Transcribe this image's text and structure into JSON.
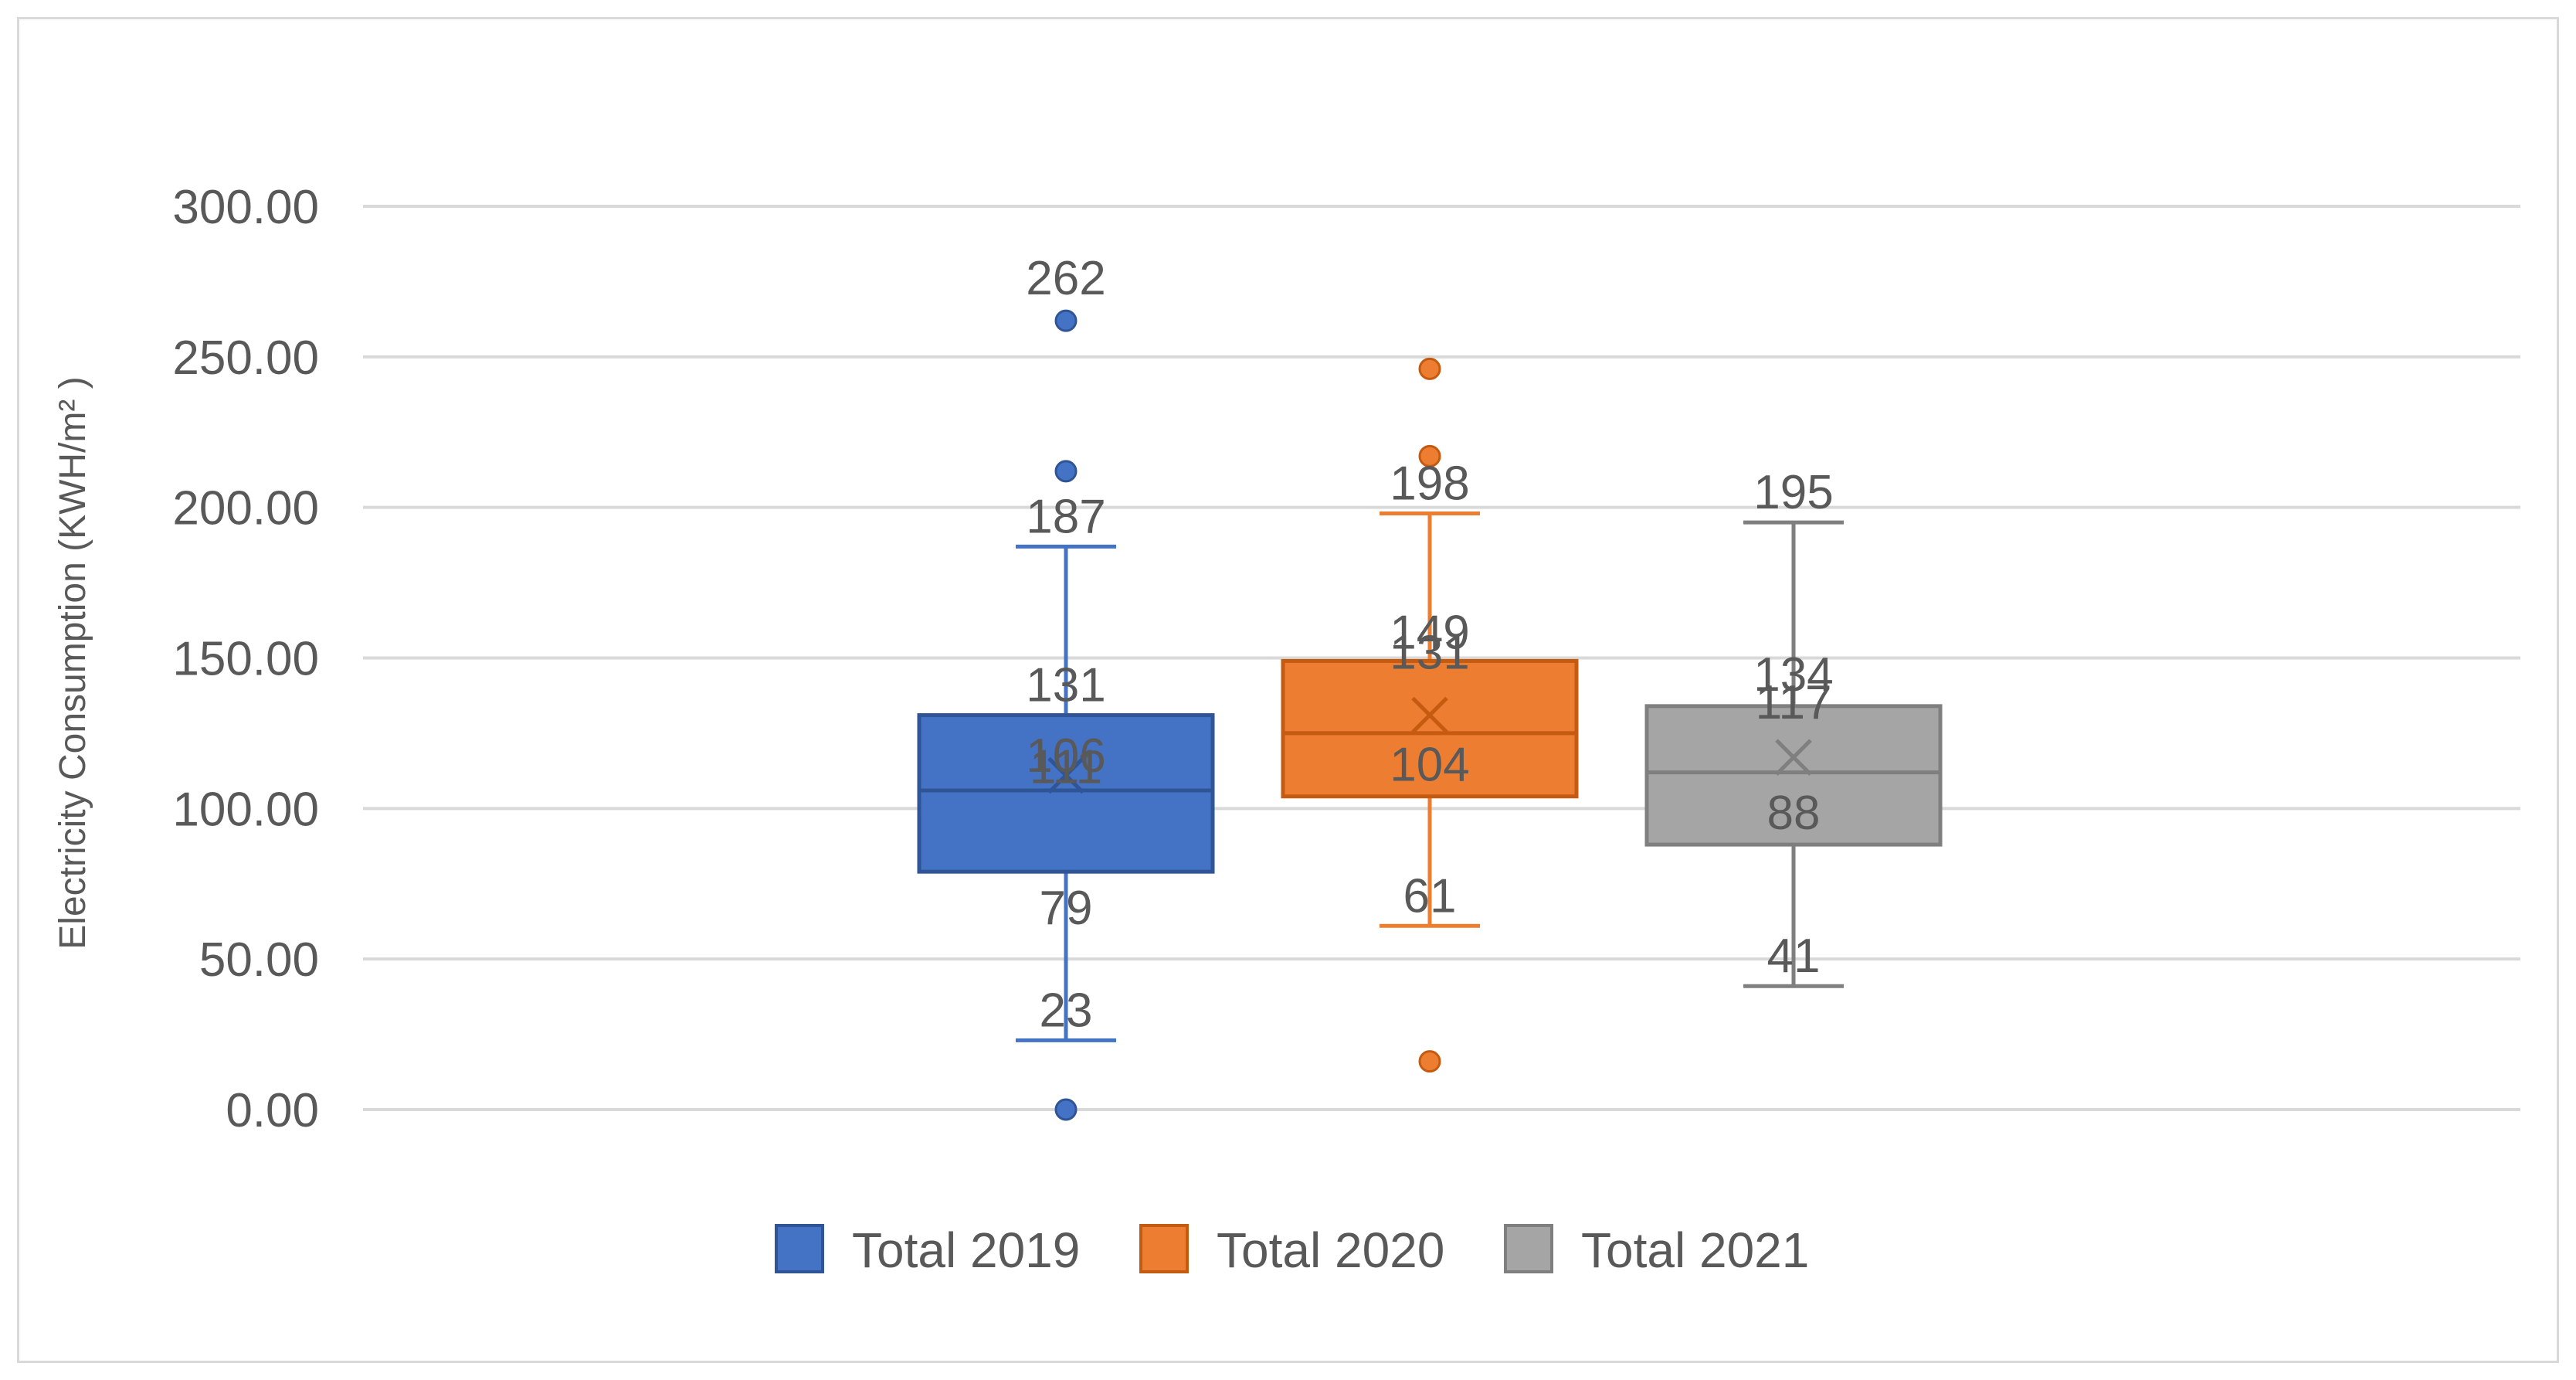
{
  "chart_data": {
    "type": "box",
    "title": "",
    "xlabel": "",
    "ylabel": "Electricity Consumption (KWH/m² )",
    "ylim": [
      0,
      300
    ],
    "yticks": [
      0,
      50,
      100,
      150,
      200,
      250,
      300
    ],
    "ytick_labels": [
      "0.00",
      "50.00",
      "100.00",
      "150.00",
      "200.00",
      "250.00",
      "300.00"
    ],
    "grid": true,
    "legend_position": "bottom",
    "series": [
      {
        "name": "Total 2019",
        "color": "#4472c4",
        "whisker_low": 23,
        "q1": 79,
        "median": 106,
        "mean": 111,
        "q3": 131,
        "whisker_high": 187,
        "outliers": [
          262,
          212,
          0
        ],
        "labels": [
          "262",
          "187",
          "131",
          "111",
          "106",
          "79",
          "23"
        ]
      },
      {
        "name": "Total 2020",
        "color": "#ed7d31",
        "whisker_low": 61,
        "q1": 104,
        "median": 125,
        "mean": 131,
        "q3": 149,
        "whisker_high": 198,
        "outliers": [
          246,
          217,
          16
        ],
        "labels": [
          "198",
          "149",
          "131",
          "104",
          "61"
        ]
      },
      {
        "name": "Total 2021",
        "color": "#a5a5a5",
        "whisker_low": 41,
        "q1": 88,
        "median": 112,
        "mean": 117,
        "q3": 134,
        "whisker_high": 195,
        "outliers": [],
        "labels": [
          "195",
          "134",
          "117",
          "88",
          "41"
        ]
      }
    ]
  }
}
